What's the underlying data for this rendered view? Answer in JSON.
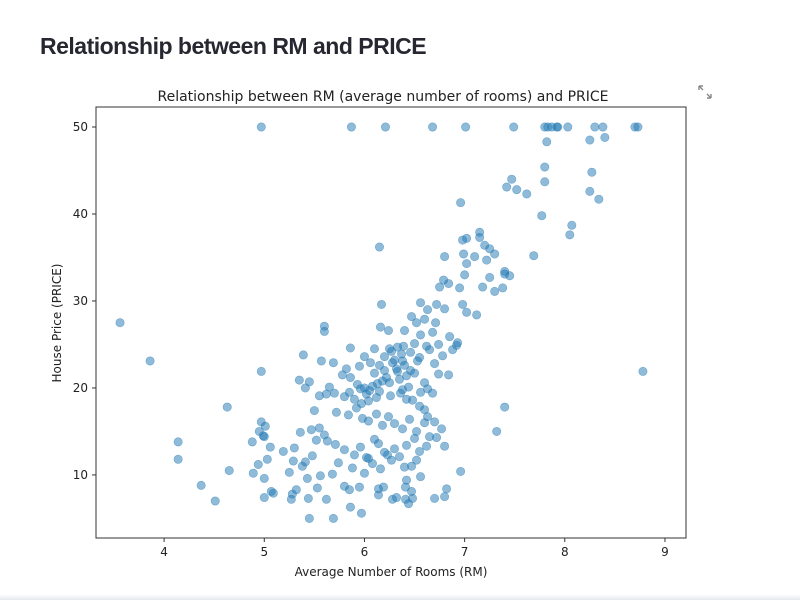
{
  "page": {
    "title": "Relationship between RM and PRICE",
    "fullscreen_icon": "expand-icon"
  },
  "chart_data": {
    "type": "scatter",
    "title": "Relationship between RM (average number of rooms) and PRICE",
    "xlabel": "Average Number of Rooms (RM)",
    "ylabel": "House Price (PRICE)",
    "xlim": [
      3.32,
      9.21
    ],
    "ylim": [
      2.75,
      52.3
    ],
    "xticks": [
      4,
      5,
      6,
      7,
      8,
      9
    ],
    "yticks": [
      10,
      20,
      30,
      40,
      50
    ],
    "color": "#1f77b4",
    "alpha": 0.5,
    "grid": false,
    "points": [
      [
        4.97,
        50
      ],
      [
        5.87,
        50
      ],
      [
        6.21,
        50
      ],
      [
        6.68,
        50
      ],
      [
        7.01,
        50
      ],
      [
        7.49,
        50
      ],
      [
        7.8,
        50
      ],
      [
        7.83,
        50
      ],
      [
        7.87,
        50
      ],
      [
        7.92,
        50
      ],
      [
        7.93,
        50
      ],
      [
        8.03,
        50
      ],
      [
        8.3,
        50
      ],
      [
        8.38,
        50
      ],
      [
        8.7,
        50
      ],
      [
        8.73,
        50
      ],
      [
        7.82,
        48.3
      ],
      [
        8.25,
        48.5
      ],
      [
        8.4,
        48.8
      ],
      [
        7.47,
        44.0
      ],
      [
        7.42,
        43.1
      ],
      [
        7.52,
        42.8
      ],
      [
        7.8,
        45.4
      ],
      [
        7.8,
        43.7
      ],
      [
        8.27,
        44.8
      ],
      [
        8.25,
        42.6
      ],
      [
        8.34,
        41.7
      ],
      [
        7.62,
        42.3
      ],
      [
        6.96,
        41.3
      ],
      [
        7.77,
        39.8
      ],
      [
        8.07,
        38.7
      ],
      [
        8.05,
        37.6
      ],
      [
        7.69,
        35.2
      ],
      [
        3.56,
        27.5
      ],
      [
        3.86,
        23.1
      ],
      [
        4.97,
        21.9
      ],
      [
        8.78,
        21.9
      ],
      [
        4.14,
        13.8
      ],
      [
        4.14,
        11.8
      ],
      [
        4.37,
        8.8
      ],
      [
        4.51,
        7.0
      ],
      [
        4.65,
        10.5
      ],
      [
        4.63,
        17.8
      ],
      [
        6.15,
        36.2
      ],
      [
        7.15,
        37.9
      ],
      [
        7.15,
        37.3
      ],
      [
        6.98,
        37.0
      ],
      [
        7.02,
        37.2
      ],
      [
        7.2,
        36.4
      ],
      [
        7.25,
        36.0
      ],
      [
        7.3,
        35.4
      ],
      [
        7.1,
        35.1
      ],
      [
        6.99,
        35.4
      ],
      [
        6.8,
        35.1
      ],
      [
        7.22,
        34.7
      ],
      [
        7.02,
        34.3
      ],
      [
        7.4,
        33.4
      ],
      [
        7.4,
        33.1
      ],
      [
        7.45,
        32.9
      ],
      [
        7.0,
        33.0
      ],
      [
        6.79,
        32.4
      ],
      [
        6.84,
        32.0
      ],
      [
        6.75,
        31.6
      ],
      [
        6.95,
        31.5
      ],
      [
        7.18,
        31.6
      ],
      [
        7.25,
        32.7
      ],
      [
        7.3,
        31.1
      ],
      [
        7.38,
        31.5
      ],
      [
        6.8,
        29.1
      ],
      [
        6.98,
        29.6
      ],
      [
        7.02,
        28.7
      ],
      [
        7.12,
        28.4
      ],
      [
        6.56,
        29.8
      ],
      [
        6.63,
        29.0
      ],
      [
        6.72,
        29.6
      ],
      [
        6.47,
        28.2
      ],
      [
        6.6,
        27.9
      ],
      [
        6.71,
        27.5
      ],
      [
        6.52,
        27.5
      ],
      [
        6.4,
        26.6
      ],
      [
        6.56,
        26.1
      ],
      [
        6.68,
        26.4
      ],
      [
        6.85,
        25.9
      ],
      [
        6.92,
        24.9
      ],
      [
        6.93,
        25.2
      ],
      [
        6.74,
        25.0
      ],
      [
        6.62,
        24.8
      ],
      [
        6.5,
        25.1
      ],
      [
        6.33,
        24.7
      ],
      [
        5.6,
        27.1
      ],
      [
        5.6,
        26.5
      ],
      [
        6.17,
        29.6
      ],
      [
        6.16,
        27.0
      ],
      [
        6.24,
        26.6
      ],
      [
        5.39,
        23.8
      ],
      [
        5.57,
        23.1
      ],
      [
        5.69,
        22.9
      ],
      [
        5.35,
        20.9
      ],
      [
        5.86,
        24.6
      ],
      [
        6.0,
        23.6
      ],
      [
        6.1,
        24.5
      ],
      [
        6.25,
        24.5
      ],
      [
        6.37,
        23.9
      ],
      [
        6.39,
        24.8
      ],
      [
        6.46,
        24.1
      ],
      [
        6.55,
        23.5
      ],
      [
        6.65,
        24.4
      ],
      [
        6.78,
        23.7
      ],
      [
        6.88,
        24.4
      ],
      [
        6.74,
        21.6
      ],
      [
        6.84,
        21.5
      ],
      [
        5.86,
        21.2
      ],
      [
        5.93,
        20.4
      ],
      [
        5.96,
        19.9
      ],
      [
        6.0,
        20.0
      ],
      [
        6.02,
        19.3
      ],
      [
        6.05,
        19.7
      ],
      [
        6.08,
        20.2
      ],
      [
        6.1,
        21.7
      ],
      [
        6.13,
        20.5
      ],
      [
        6.15,
        19.6
      ],
      [
        6.18,
        20.8
      ],
      [
        6.2,
        22.0
      ],
      [
        6.22,
        21.2
      ],
      [
        6.25,
        20.6
      ],
      [
        6.28,
        22.9
      ],
      [
        6.3,
        23.2
      ],
      [
        6.32,
        22.2
      ],
      [
        6.35,
        21.0
      ],
      [
        6.38,
        23.1
      ],
      [
        6.4,
        22.6
      ],
      [
        6.42,
        21.4
      ],
      [
        6.44,
        20.1
      ],
      [
        6.46,
        22.0
      ],
      [
        6.5,
        21.7
      ],
      [
        6.53,
        23.1
      ],
      [
        6.56,
        19.5
      ],
      [
        6.6,
        20.6
      ],
      [
        6.63,
        19.9
      ],
      [
        6.68,
        19.4
      ],
      [
        6.7,
        22.8
      ],
      [
        6.48,
        18.6
      ],
      [
        6.38,
        19.8
      ],
      [
        6.26,
        19.1
      ],
      [
        6.12,
        18.9
      ],
      [
        6.04,
        18.5
      ],
      [
        5.9,
        18.7
      ],
      [
        5.97,
        18.2
      ],
      [
        5.85,
        19.5
      ],
      [
        5.8,
        19.0
      ],
      [
        5.7,
        19.4
      ],
      [
        5.65,
        20.1
      ],
      [
        5.62,
        19.3
      ],
      [
        5.55,
        19.1
      ],
      [
        5.5,
        17.4
      ],
      [
        5.41,
        20.0
      ],
      [
        5.45,
        20.7
      ],
      [
        5.78,
        21.5
      ],
      [
        5.82,
        22.2
      ],
      [
        5.95,
        22.5
      ],
      [
        6.06,
        22.9
      ],
      [
        6.15,
        22.6
      ],
      [
        6.2,
        23.6
      ],
      [
        6.27,
        24.2
      ],
      [
        6.33,
        21.9
      ],
      [
        6.36,
        19.4
      ],
      [
        6.42,
        18.7
      ],
      [
        6.55,
        17.9
      ],
      [
        6.6,
        17.5
      ],
      [
        5.72,
        17.2
      ],
      [
        5.84,
        16.9
      ],
      [
        5.92,
        17.7
      ],
      [
        5.98,
        16.5
      ],
      [
        6.04,
        16.2
      ],
      [
        6.12,
        17.0
      ],
      [
        6.18,
        15.7
      ],
      [
        6.24,
        16.7
      ],
      [
        6.3,
        15.9
      ],
      [
        6.38,
        15.3
      ],
      [
        6.45,
        16.4
      ],
      [
        6.52,
        15.0
      ],
      [
        6.6,
        16.0
      ],
      [
        6.65,
        14.4
      ],
      [
        5.55,
        15.4
      ],
      [
        5.6,
        14.6
      ],
      [
        5.63,
        13.9
      ],
      [
        5.52,
        14.0
      ],
      [
        5.47,
        15.2
      ],
      [
        5.36,
        14.9
      ],
      [
        5.3,
        13.1
      ],
      [
        5.29,
        11.6
      ],
      [
        5.19,
        12.7
      ],
      [
        5.06,
        13.2
      ],
      [
        5.03,
        11.8
      ],
      [
        4.99,
        14.5
      ],
      [
        5.01,
        15.6
      ],
      [
        4.97,
        16.1
      ],
      [
        5.0,
        14.4
      ],
      [
        4.94,
        11.2
      ],
      [
        4.88,
        13.8
      ],
      [
        4.89,
        10.2
      ],
      [
        4.95,
        15.0
      ],
      [
        5.71,
        13.5
      ],
      [
        5.8,
        12.9
      ],
      [
        5.9,
        12.3
      ],
      [
        5.96,
        13.2
      ],
      [
        6.02,
        12.0
      ],
      [
        6.08,
        11.3
      ],
      [
        6.1,
        14.1
      ],
      [
        6.14,
        13.6
      ],
      [
        6.2,
        12.6
      ],
      [
        6.27,
        11.7
      ],
      [
        6.3,
        13.0
      ],
      [
        6.35,
        12.1
      ],
      [
        6.42,
        13.4
      ],
      [
        6.47,
        11.0
      ],
      [
        6.5,
        14.2
      ],
      [
        6.55,
        12.7
      ],
      [
        6.62,
        13.3
      ],
      [
        6.72,
        14.3
      ],
      [
        6.8,
        13.3
      ],
      [
        6.77,
        15.3
      ],
      [
        6.7,
        16.1
      ],
      [
        6.63,
        16.7
      ],
      [
        7.32,
        15.0
      ],
      [
        7.4,
        17.8
      ],
      [
        6.96,
        10.4
      ],
      [
        5.48,
        12.2
      ],
      [
        5.41,
        11.5
      ],
      [
        5.38,
        11.0
      ],
      [
        5.25,
        10.3
      ],
      [
        5.43,
        9.6
      ],
      [
        5.56,
        9.9
      ],
      [
        5.68,
        10.1
      ],
      [
        5.74,
        11.4
      ],
      [
        5.88,
        10.8
      ],
      [
        6.0,
        10.2
      ],
      [
        6.04,
        11.9
      ],
      [
        6.16,
        10.7
      ],
      [
        6.23,
        12.3
      ],
      [
        6.4,
        10.9
      ],
      [
        6.42,
        9.4
      ],
      [
        6.41,
        8.6
      ],
      [
        6.47,
        8.1
      ],
      [
        6.14,
        8.4
      ],
      [
        6.19,
        8.6
      ],
      [
        6.48,
        7.3
      ],
      [
        6.7,
        7.3
      ],
      [
        6.8,
        7.5
      ],
      [
        6.82,
        8.4
      ],
      [
        6.52,
        11.7
      ],
      [
        6.56,
        9.8
      ],
      [
        5.0,
        9.6
      ],
      [
        5.0,
        7.4
      ],
      [
        5.07,
        8.1
      ],
      [
        5.27,
        7.2
      ],
      [
        5.32,
        8.3
      ],
      [
        5.44,
        7.3
      ],
      [
        5.53,
        8.5
      ],
      [
        5.62,
        7.2
      ],
      [
        5.8,
        8.7
      ],
      [
        5.86,
        6.3
      ],
      [
        5.97,
        5.6
      ],
      [
        5.95,
        8.6
      ],
      [
        6.14,
        7.7
      ],
      [
        6.28,
        7.2
      ],
      [
        5.85,
        8.3
      ],
      [
        6.32,
        7.4
      ],
      [
        6.41,
        7.2
      ],
      [
        6.44,
        6.7
      ],
      [
        5.45,
        5.0
      ],
      [
        5.69,
        5.0
      ],
      [
        5.28,
        7.8
      ],
      [
        5.09,
        7.9
      ]
    ]
  }
}
